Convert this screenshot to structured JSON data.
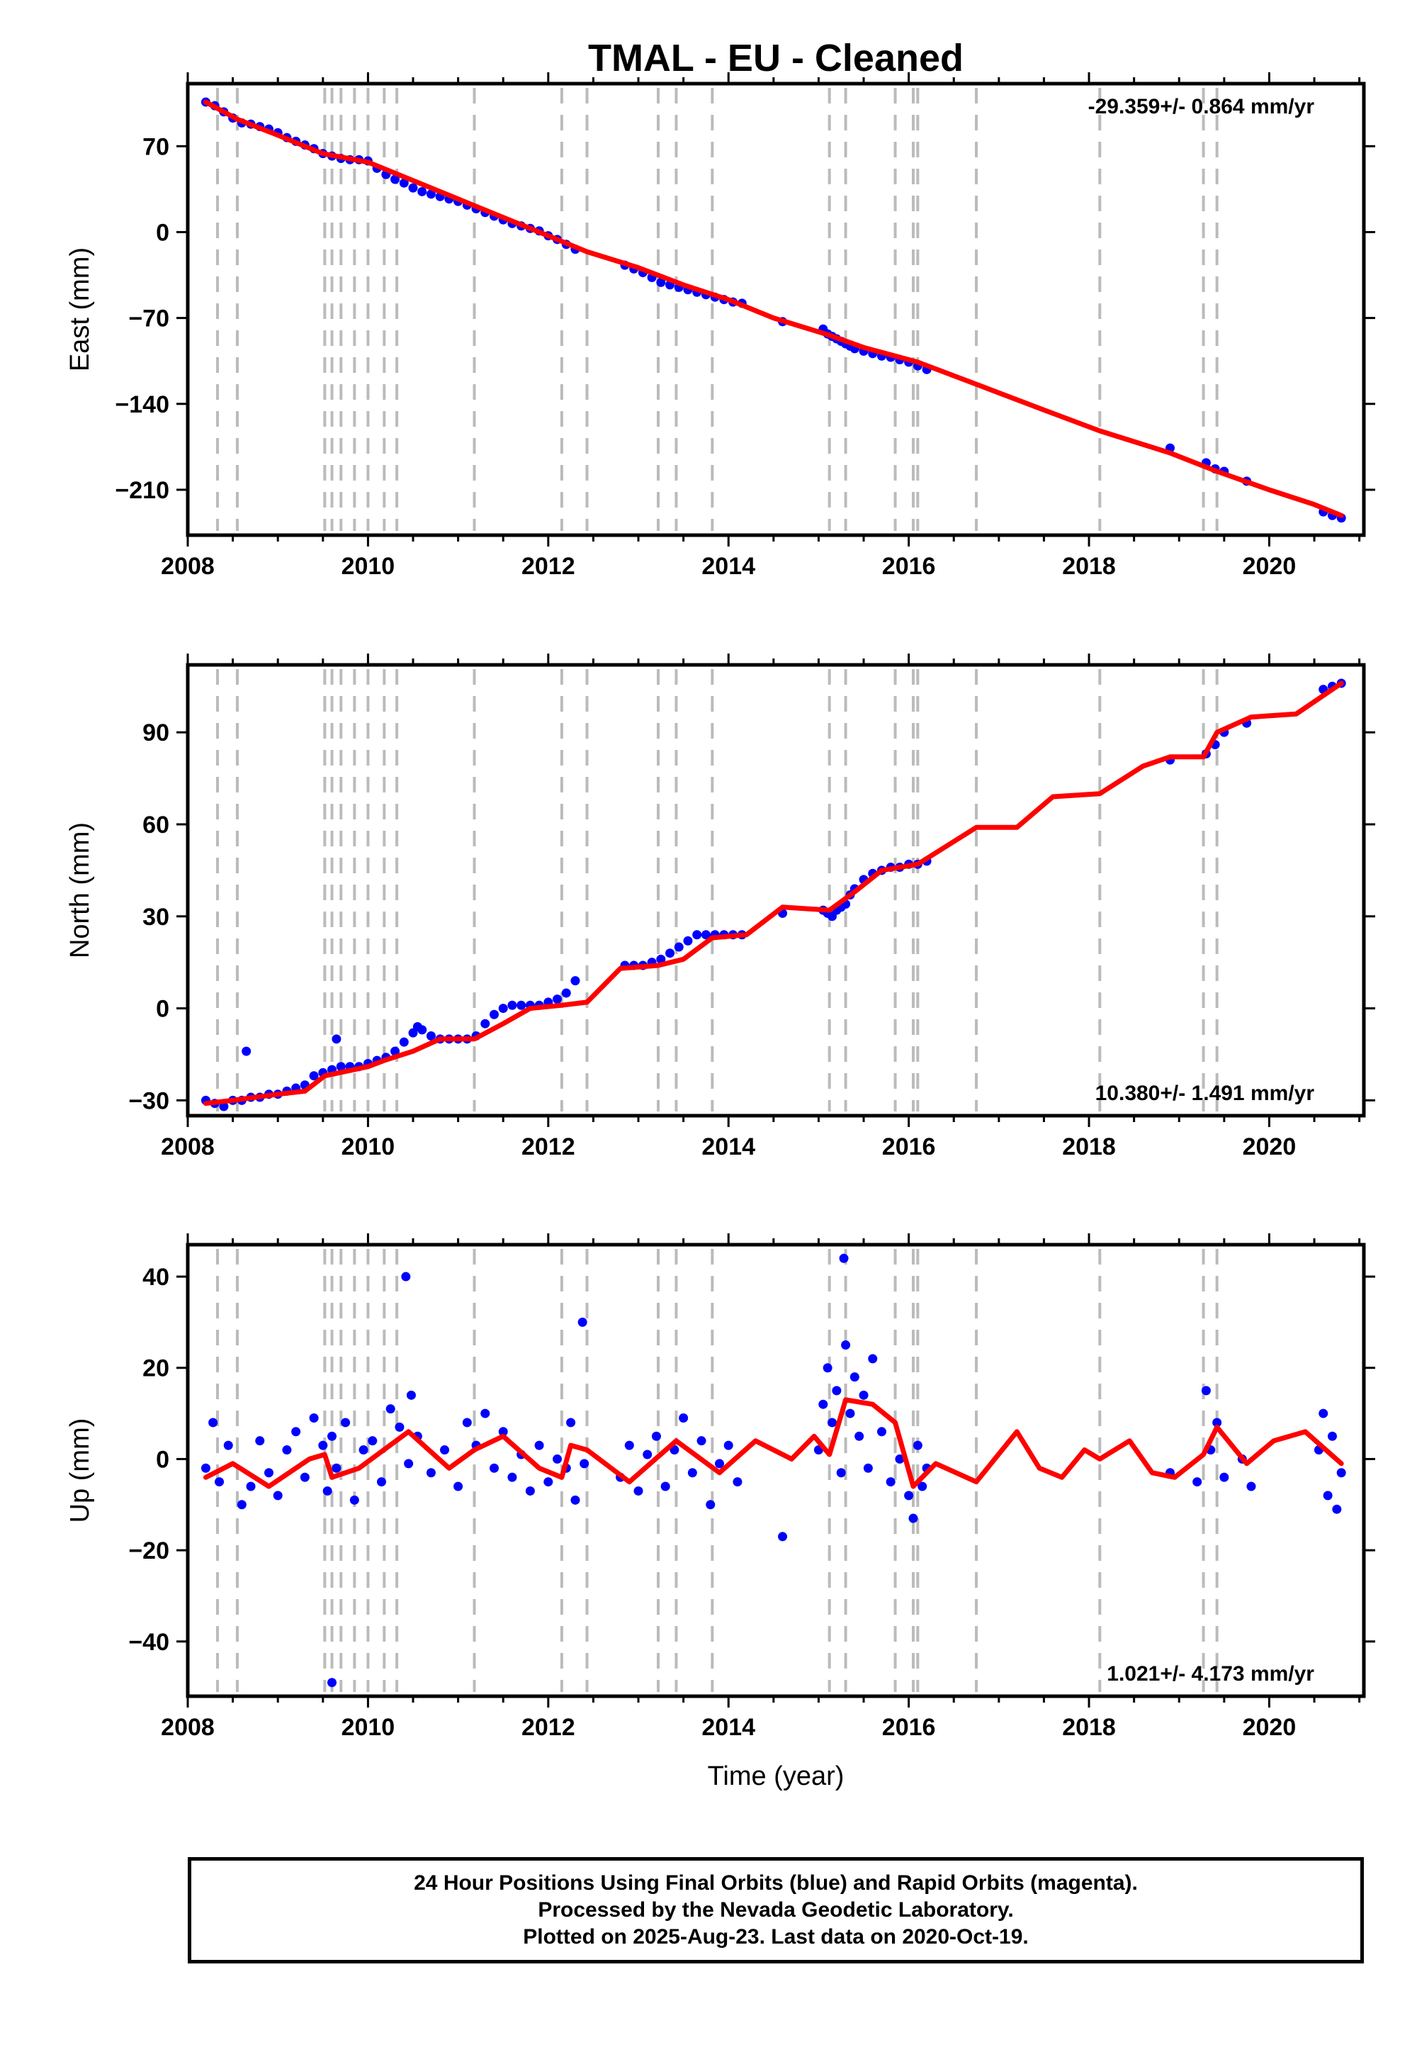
{
  "title": "TMAL  - EU - Cleaned",
  "colors": {
    "data": "#0000ff",
    "model": "#ff0000",
    "event_line": "#bbbbbb",
    "frame": "#000000"
  },
  "footer": {
    "lines": [
      "24 Hour Positions Using Final Orbits (blue) and Rapid Orbits (magenta).",
      "Processed by the Nevada Geodetic Laboratory.",
      "Plotted on 2025-Aug-23. Last data on 2020-Oct-19."
    ]
  },
  "chart_data": [
    {
      "type": "scatter",
      "panel": "east",
      "ylabel": "East (mm)",
      "xlabel": "",
      "xlim": [
        2008.0,
        2021.05
      ],
      "ylim": [
        -247,
        121
      ],
      "xticks": [
        2008,
        2010,
        2012,
        2014,
        2016,
        2018,
        2020
      ],
      "yticks": [
        70,
        0,
        -70,
        -140,
        -210
      ],
      "ytick_labels": [
        "70",
        "0",
        "−70",
        "−140",
        "−210"
      ],
      "rate_text": "-29.359+/- 0.864 mm/yr",
      "rate_position": "top-right",
      "event_lines": [
        2008.33,
        2008.55,
        2009.52,
        2009.6,
        2009.7,
        2009.85,
        2010.0,
        2010.18,
        2010.32,
        2011.18,
        2012.15,
        2012.43,
        2013.22,
        2013.42,
        2013.82,
        2015.12,
        2015.3,
        2015.85,
        2016.05,
        2016.1,
        2016.75,
        2018.12,
        2019.27,
        2019.42
      ],
      "series": [
        {
          "name": "daily positions",
          "style": "points",
          "x": [
            2008.2,
            2008.3,
            2008.4,
            2008.5,
            2008.6,
            2008.7,
            2008.8,
            2008.9,
            2009.0,
            2009.1,
            2009.2,
            2009.3,
            2009.4,
            2009.5,
            2009.6,
            2009.7,
            2009.8,
            2009.9,
            2010.0,
            2010.1,
            2010.2,
            2010.3,
            2010.4,
            2010.5,
            2010.6,
            2010.7,
            2010.8,
            2010.9,
            2011.0,
            2011.1,
            2011.2,
            2011.3,
            2011.4,
            2011.5,
            2011.6,
            2011.7,
            2011.8,
            2011.9,
            2012.0,
            2012.1,
            2012.2,
            2012.3,
            2012.85,
            2012.95,
            2013.05,
            2013.15,
            2013.25,
            2013.35,
            2013.45,
            2013.55,
            2013.65,
            2013.75,
            2013.85,
            2013.95,
            2014.05,
            2014.15,
            2014.6,
            2015.05,
            2015.1,
            2015.15,
            2015.2,
            2015.25,
            2015.3,
            2015.35,
            2015.4,
            2015.5,
            2015.6,
            2015.7,
            2015.8,
            2015.9,
            2016.0,
            2016.1,
            2016.2,
            2018.9,
            2019.3,
            2019.4,
            2019.5,
            2019.75,
            2020.6,
            2020.7,
            2020.8
          ],
          "y": [
            106,
            103,
            98,
            93,
            89,
            88,
            86,
            84,
            81,
            77,
            74,
            71,
            68,
            64,
            62,
            60,
            59,
            59,
            58,
            52,
            47,
            43,
            40,
            36,
            33,
            31,
            29,
            27,
            25,
            22,
            19,
            16,
            13,
            10,
            7,
            5,
            3,
            1,
            -3,
            -6,
            -10,
            -14,
            -27,
            -30,
            -33,
            -37,
            -41,
            -43,
            -45,
            -47,
            -49,
            -51,
            -53,
            -55,
            -57,
            -58,
            -73,
            -79,
            -83,
            -85,
            -87,
            -89,
            -91,
            -93,
            -95,
            -97,
            -99,
            -101,
            -102,
            -104,
            -106,
            -109,
            -112,
            -176,
            -188,
            -193,
            -195,
            -203,
            -228,
            -231,
            -233
          ]
        },
        {
          "name": "model",
          "style": "line",
          "x": [
            2008.2,
            2008.55,
            2009.0,
            2009.5,
            2010.0,
            2010.5,
            2011.0,
            2011.5,
            2012.0,
            2012.43,
            2013.0,
            2013.5,
            2014.0,
            2014.5,
            2015.12,
            2015.5,
            2016.1,
            2016.75,
            2017.5,
            2018.12,
            2018.9,
            2019.42,
            2020.0,
            2020.5,
            2020.8
          ],
          "y": [
            106,
            92,
            79,
            64,
            57,
            42,
            27,
            12,
            -3,
            -16,
            -29,
            -43,
            -55,
            -70,
            -84,
            -94,
            -106,
            -124,
            -145,
            -162,
            -180,
            -195,
            -210,
            -222,
            -231
          ]
        }
      ]
    },
    {
      "type": "scatter",
      "panel": "north",
      "ylabel": "North (mm)",
      "xlabel": "",
      "xlim": [
        2008.0,
        2021.05
      ],
      "ylim": [
        -35,
        112
      ],
      "xticks": [
        2008,
        2010,
        2012,
        2014,
        2016,
        2018,
        2020
      ],
      "yticks": [
        90,
        60,
        30,
        0,
        -30
      ],
      "ytick_labels": [
        "90",
        "60",
        "30",
        "0",
        "−30"
      ],
      "rate_text": "10.380+/- 1.491 mm/yr",
      "rate_position": "bottom-right",
      "event_lines": [
        2008.33,
        2008.55,
        2009.52,
        2009.6,
        2009.7,
        2009.85,
        2010.0,
        2010.18,
        2010.32,
        2011.18,
        2012.15,
        2012.43,
        2013.22,
        2013.42,
        2013.82,
        2015.12,
        2015.3,
        2015.85,
        2016.05,
        2016.1,
        2016.75,
        2018.12,
        2019.27,
        2019.42
      ],
      "series": [
        {
          "name": "daily positions",
          "style": "points",
          "x": [
            2008.2,
            2008.3,
            2008.4,
            2008.5,
            2008.6,
            2008.7,
            2008.8,
            2008.9,
            2009.0,
            2009.1,
            2009.2,
            2009.3,
            2009.4,
            2009.5,
            2009.6,
            2009.7,
            2009.8,
            2009.9,
            2010.0,
            2010.1,
            2010.2,
            2010.3,
            2010.4,
            2010.5,
            2010.6,
            2010.7,
            2010.8,
            2010.9,
            2011.0,
            2011.1,
            2011.2,
            2011.3,
            2011.4,
            2011.5,
            2011.6,
            2011.7,
            2011.8,
            2011.9,
            2012.0,
            2012.1,
            2012.2,
            2012.3,
            2012.85,
            2012.95,
            2013.05,
            2013.15,
            2013.25,
            2013.35,
            2013.45,
            2013.55,
            2013.65,
            2013.75,
            2013.85,
            2013.95,
            2014.05,
            2014.15,
            2014.6,
            2015.05,
            2015.1,
            2015.15,
            2015.2,
            2015.25,
            2015.3,
            2015.35,
            2015.4,
            2015.5,
            2015.6,
            2015.7,
            2015.8,
            2015.9,
            2016.0,
            2016.1,
            2016.2,
            2018.9,
            2019.3,
            2019.4,
            2019.5,
            2019.75,
            2020.6,
            2020.7,
            2020.8,
            2008.65,
            2009.65,
            2010.55
          ],
          "y": [
            -30,
            -31,
            -32,
            -30,
            -30,
            -29,
            -29,
            -28,
            -28,
            -27,
            -26,
            -25,
            -22,
            -21,
            -20,
            -19,
            -19,
            -19,
            -18,
            -17,
            -16,
            -14,
            -11,
            -8,
            -7,
            -9,
            -10,
            -10,
            -10,
            -10,
            -9,
            -5,
            -2,
            0,
            1,
            1,
            1,
            1,
            2,
            3,
            5,
            9,
            14,
            14,
            14,
            15,
            16,
            18,
            20,
            22,
            24,
            24,
            24,
            24,
            24,
            24,
            31,
            32,
            31,
            30,
            32,
            33,
            34,
            37,
            39,
            42,
            44,
            45,
            46,
            46,
            47,
            47,
            48,
            81,
            83,
            86,
            90,
            93,
            104,
            105,
            106,
            -14,
            -10,
            -6
          ]
        },
        {
          "name": "model",
          "style": "line",
          "x": [
            2008.2,
            2008.5,
            2009.0,
            2009.3,
            2009.52,
            2010.0,
            2010.18,
            2010.5,
            2010.8,
            2011.18,
            2011.5,
            2011.8,
            2012.15,
            2012.43,
            2012.8,
            2013.22,
            2013.5,
            2013.82,
            2014.2,
            2014.6,
            2015.12,
            2015.4,
            2015.7,
            2016.1,
            2016.75,
            2017.2,
            2017.6,
            2018.12,
            2018.6,
            2018.9,
            2019.27,
            2019.42,
            2019.8,
            2020.3,
            2020.8
          ],
          "y": [
            -31,
            -30,
            -28,
            -27,
            -22,
            -19,
            -17,
            -14,
            -10,
            -10,
            -5,
            0,
            1,
            2,
            13,
            14,
            16,
            23,
            24,
            33,
            32,
            38,
            45,
            47,
            59,
            59,
            69,
            70,
            79,
            82,
            82,
            90,
            95,
            96,
            106
          ]
        }
      ]
    },
    {
      "type": "scatter",
      "panel": "up",
      "ylabel": "Up (mm)",
      "xlabel": "Time (year)",
      "xlim": [
        2008.0,
        2021.05
      ],
      "ylim": [
        -52,
        47
      ],
      "xticks": [
        2008,
        2010,
        2012,
        2014,
        2016,
        2018,
        2020
      ],
      "yticks": [
        40,
        20,
        0,
        -20,
        -40
      ],
      "ytick_labels": [
        "40",
        "20",
        "0",
        "−20",
        "−40"
      ],
      "rate_text": "1.021+/- 4.173 mm/yr",
      "rate_position": "bottom-right",
      "event_lines": [
        2008.33,
        2008.55,
        2009.52,
        2009.6,
        2009.7,
        2009.85,
        2010.0,
        2010.18,
        2010.32,
        2011.18,
        2012.15,
        2012.43,
        2013.22,
        2013.42,
        2013.82,
        2015.12,
        2015.3,
        2015.85,
        2016.05,
        2016.1,
        2016.75,
        2018.12,
        2019.27,
        2019.42
      ],
      "series": [
        {
          "name": "daily positions",
          "style": "points",
          "x": [
            2008.2,
            2008.28,
            2008.35,
            2008.45,
            2008.6,
            2008.7,
            2008.8,
            2008.9,
            2009.0,
            2009.1,
            2009.2,
            2009.3,
            2009.4,
            2009.5,
            2009.55,
            2009.6,
            2009.65,
            2009.75,
            2009.85,
            2009.95,
            2010.05,
            2010.15,
            2010.25,
            2010.35,
            2010.45,
            2010.48,
            2010.55,
            2010.7,
            2010.85,
            2011.0,
            2011.1,
            2011.2,
            2011.3,
            2011.4,
            2011.5,
            2011.6,
            2011.7,
            2011.8,
            2011.9,
            2012.0,
            2012.1,
            2012.2,
            2012.25,
            2012.3,
            2012.4,
            2012.8,
            2012.9,
            2013.0,
            2013.1,
            2013.2,
            2013.3,
            2013.4,
            2013.5,
            2013.6,
            2013.7,
            2013.8,
            2013.9,
            2014.0,
            2014.1,
            2014.6,
            2015.0,
            2015.05,
            2015.1,
            2015.15,
            2015.2,
            2015.25,
            2015.3,
            2015.35,
            2015.4,
            2015.45,
            2015.5,
            2015.55,
            2015.6,
            2015.7,
            2015.8,
            2015.9,
            2016.0,
            2016.05,
            2016.1,
            2016.15,
            2016.2,
            2018.9,
            2019.2,
            2019.3,
            2019.35,
            2019.42,
            2019.5,
            2019.7,
            2019.8,
            2020.55,
            2020.6,
            2020.65,
            2020.7,
            2020.75,
            2020.8,
            2009.6,
            2010.42,
            2012.38,
            2015.28
          ],
          "y": [
            -2,
            8,
            -5,
            3,
            -10,
            -6,
            4,
            -3,
            -8,
            2,
            6,
            -4,
            9,
            3,
            -7,
            5,
            -2,
            8,
            -9,
            2,
            4,
            -5,
            11,
            7,
            -1,
            14,
            5,
            -3,
            2,
            -6,
            8,
            3,
            10,
            -2,
            6,
            -4,
            1,
            -7,
            3,
            -5,
            0,
            -2,
            8,
            -9,
            -1,
            -4,
            3,
            -7,
            1,
            5,
            -6,
            2,
            9,
            -3,
            4,
            -10,
            -1,
            3,
            -5,
            -17,
            2,
            12,
            20,
            8,
            15,
            -3,
            25,
            10,
            18,
            5,
            14,
            -2,
            22,
            6,
            -5,
            0,
            -8,
            -13,
            3,
            -6,
            -2,
            -3,
            -5,
            15,
            2,
            8,
            -4,
            0,
            -6,
            2,
            10,
            -8,
            5,
            -11,
            -3,
            -49,
            40,
            30,
            44
          ]
        },
        {
          "name": "model",
          "style": "line",
          "x": [
            2008.2,
            2008.5,
            2008.9,
            2009.35,
            2009.52,
            2009.6,
            2009.9,
            2010.45,
            2010.9,
            2011.18,
            2011.5,
            2011.9,
            2012.15,
            2012.25,
            2012.43,
            2012.9,
            2013.42,
            2013.9,
            2014.3,
            2014.7,
            2014.95,
            2015.12,
            2015.3,
            2015.6,
            2015.85,
            2016.05,
            2016.3,
            2016.75,
            2017.2,
            2017.45,
            2017.7,
            2017.95,
            2018.12,
            2018.45,
            2018.7,
            2018.95,
            2019.27,
            2019.42,
            2019.75,
            2020.05,
            2020.4,
            2020.8
          ],
          "y": [
            -4,
            -1,
            -6,
            0,
            1,
            -4,
            -2,
            6,
            -2,
            2,
            5,
            -2,
            -4,
            3,
            2,
            -5,
            4,
            -3,
            4,
            0,
            5,
            1,
            13,
            12,
            8,
            -6,
            -1,
            -5,
            6,
            -2,
            -4,
            2,
            0,
            4,
            -3,
            -4,
            1,
            7,
            -1,
            4,
            6,
            -1
          ]
        }
      ]
    }
  ]
}
